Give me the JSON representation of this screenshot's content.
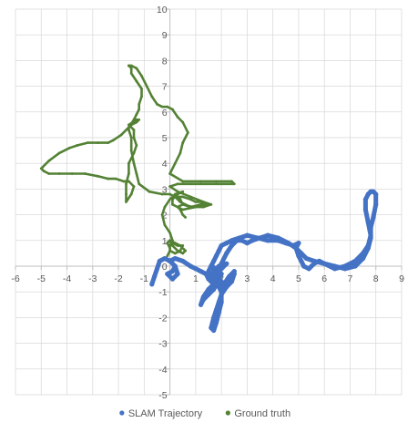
{
  "chart_data": {
    "type": "scatter",
    "title": "",
    "xlabel": "",
    "ylabel": "",
    "xlim": [
      -6,
      9
    ],
    "ylim": [
      -5,
      10
    ],
    "xticks": [
      -6,
      -5,
      -4,
      -3,
      -2,
      -1,
      0,
      1,
      2,
      3,
      4,
      5,
      6,
      7,
      8,
      9
    ],
    "yticks": [
      -5,
      -4,
      -3,
      -2,
      -1,
      0,
      1,
      2,
      3,
      4,
      5,
      6,
      7,
      8,
      9,
      10
    ],
    "grid": true,
    "legend_position": "bottom",
    "series": [
      {
        "name": "SLAM Trajectory",
        "color": "#4472C4",
        "x": [
          -0.7,
          -0.6,
          -0.5,
          -0.4,
          -0.2,
          0.0,
          0.2,
          0.1,
          -0.1,
          0.1,
          0.3,
          0.2,
          0.0,
          0.2,
          0.5,
          0.8,
          1.0,
          1.2,
          1.4,
          1.5,
          1.6,
          1.8,
          1.7,
          1.5,
          1.3,
          1.2,
          1.3,
          1.5,
          1.7,
          1.8,
          1.9,
          1.7,
          1.6,
          1.8,
          2.0,
          1.9,
          2.1,
          2.2,
          2.0,
          1.8,
          1.7,
          1.9,
          2.2,
          2.0,
          1.8,
          1.7,
          1.9,
          2.0,
          2.1,
          2.3,
          2.5,
          2.4,
          2.2,
          2.0,
          1.8,
          2.0,
          2.2,
          2.4,
          2.6,
          2.8,
          3.0,
          3.2,
          3.5,
          3.8,
          4.2,
          4.6,
          4.9,
          5.0,
          5.1,
          5.2,
          5.4,
          5.6,
          5.8,
          6.0,
          6.4,
          6.8,
          7.2,
          7.5,
          7.7,
          7.8,
          7.7,
          7.6,
          7.6,
          7.7,
          7.8,
          7.9,
          8.0,
          8.0,
          7.9,
          7.8,
          7.8,
          7.7,
          7.5,
          7.2,
          6.8,
          6.4,
          6.0,
          5.6,
          5.3,
          5.1,
          4.9,
          5.0,
          4.8,
          4.5,
          4.2,
          3.8,
          3.4,
          3.0,
          2.7,
          2.4,
          2.2,
          2.0,
          1.9,
          1.8,
          1.7,
          1.6,
          1.5,
          1.6,
          1.7,
          1.8,
          2.1,
          2.3,
          2.5,
          2.4,
          2.2,
          2.0,
          1.9,
          1.8,
          1.7,
          1.6,
          1.7,
          1.8,
          1.9,
          2.0,
          2.0,
          1.9,
          1.8,
          1.7
        ],
        "y": [
          -0.7,
          -0.4,
          -0.1,
          0.2,
          0.3,
          0.2,
          0.0,
          -0.2,
          -0.3,
          -0.5,
          -0.3,
          0.0,
          0.2,
          0.3,
          0.2,
          0.0,
          -0.1,
          -0.2,
          -0.3,
          -0.5,
          -0.6,
          -0.7,
          -0.9,
          -1.1,
          -1.3,
          -1.5,
          -1.2,
          -0.9,
          -0.7,
          -0.5,
          -0.4,
          -0.1,
          0.0,
          -0.1,
          -0.3,
          -0.5,
          -0.7,
          -0.8,
          -0.6,
          -0.4,
          -0.2,
          0.0,
          0.1,
          -0.1,
          -0.3,
          -0.6,
          -0.8,
          -1.0,
          -0.7,
          -0.4,
          -0.2,
          -0.5,
          -0.8,
          -0.6,
          -0.3,
          0.1,
          0.5,
          0.8,
          1.0,
          1.0,
          0.9,
          1.0,
          1.1,
          1.2,
          1.1,
          0.9,
          0.7,
          0.4,
          0.2,
          0.0,
          -0.1,
          0.1,
          0.2,
          0.1,
          -0.1,
          0.0,
          0.2,
          0.5,
          0.8,
          1.2,
          1.7,
          2.2,
          2.6,
          2.8,
          2.9,
          2.9,
          2.8,
          2.4,
          1.9,
          1.5,
          1.1,
          0.7,
          0.3,
          0.0,
          -0.1,
          0.0,
          0.1,
          0.2,
          0.3,
          0.5,
          0.7,
          0.9,
          0.8,
          0.9,
          1.0,
          1.0,
          1.1,
          1.2,
          1.1,
          1.0,
          0.9,
          0.8,
          0.6,
          0.4,
          0.2,
          0.0,
          -0.2,
          -0.4,
          -0.6,
          -0.7,
          -0.7,
          -0.5,
          -0.3,
          -0.6,
          -0.8,
          -1.1,
          -1.4,
          -1.7,
          -2.0,
          -2.4,
          -2.5,
          -2.2,
          -1.8,
          -1.4,
          -1.0,
          -0.6,
          -0.4,
          -0.3
        ]
      },
      {
        "name": "Ground truth",
        "color": "#548235",
        "x": [
          -0.1,
          0.0,
          0.0,
          -0.1,
          0.0,
          0.2,
          0.4,
          0.6,
          0.5,
          0.3,
          0.1,
          0.0,
          0.1,
          0.3,
          0.5,
          0.4,
          0.2,
          0.0,
          0.0,
          0.1,
          0.0,
          -0.2,
          -0.3,
          -0.2,
          0.0,
          0.2,
          0.5,
          0.3,
          0.1,
          0.1,
          0.5,
          1.0,
          1.5,
          1.2,
          0.8,
          0.4,
          0.2,
          0.0,
          -0.3,
          -0.8,
          -1.2,
          -1.3,
          -1.4,
          -1.5,
          -1.5,
          -1.6,
          -1.6,
          -1.5,
          -1.3,
          -1.2,
          -1.3,
          -1.6,
          -1.4,
          -1.4,
          -1.3,
          -1.4,
          -1.6,
          -1.6,
          -1.7,
          -1.7,
          -1.7,
          -1.5,
          -1.4,
          -1.6,
          -1.8,
          -2.1,
          -2.4,
          -2.8,
          -3.3,
          -3.8,
          -4.3,
          -4.7,
          -4.9,
          -5.0,
          -4.7,
          -4.3,
          -3.9,
          -3.6,
          -3.2,
          -2.8,
          -2.4,
          -2.2,
          -1.9,
          -1.6,
          -1.4,
          -1.3,
          -1.2,
          -1.2,
          -1.1,
          -1.1,
          -1.3,
          -1.5,
          -1.5,
          -1.6,
          -1.6,
          -1.5,
          -1.3,
          -1.1,
          -0.9,
          -0.7,
          -0.5,
          -0.3,
          -0.1,
          0.1,
          0.3,
          0.5,
          0.7,
          0.5,
          0.4,
          0.2,
          0.0,
          0.5,
          1.2,
          1.8,
          2.4,
          2.5,
          2.0,
          1.4,
          0.8,
          0.3,
          0.0,
          0.3,
          0.8,
          1.3,
          1.6,
          1.3,
          0.8,
          0.5,
          0.4,
          0.3,
          0.5,
          0.8,
          1.0,
          1.2,
          1.3,
          0.9,
          0.5,
          0.3,
          0.4,
          0.5,
          0.6
        ],
        "y": [
          0.4,
          0.6,
          0.7,
          0.9,
          1.0,
          0.9,
          0.8,
          0.6,
          0.5,
          0.6,
          0.8,
          1.0,
          0.9,
          0.8,
          0.8,
          0.6,
          0.5,
          0.6,
          0.8,
          1.0,
          1.3,
          1.6,
          2.0,
          2.3,
          2.6,
          2.8,
          2.9,
          2.8,
          2.6,
          2.4,
          2.2,
          2.3,
          2.4,
          2.4,
          2.3,
          2.5,
          2.7,
          2.8,
          2.8,
          2.9,
          3.2,
          3.6,
          4.0,
          4.5,
          5.0,
          5.3,
          5.4,
          5.5,
          5.6,
          5.7,
          5.7,
          5.5,
          5.3,
          5.0,
          4.7,
          4.4,
          4.0,
          3.6,
          3.2,
          2.8,
          2.5,
          2.8,
          3.1,
          3.3,
          3.3,
          3.4,
          3.4,
          3.5,
          3.6,
          3.6,
          3.6,
          3.6,
          3.7,
          3.8,
          4.1,
          4.4,
          4.6,
          4.7,
          4.8,
          4.8,
          4.8,
          4.9,
          5.1,
          5.4,
          5.7,
          5.9,
          6.1,
          6.3,
          6.6,
          6.9,
          7.2,
          7.5,
          7.7,
          7.8,
          7.8,
          7.8,
          7.7,
          7.4,
          7.0,
          6.6,
          6.3,
          6.2,
          6.2,
          6.1,
          5.8,
          5.6,
          5.2,
          4.8,
          4.4,
          4.0,
          3.6,
          3.3,
          3.3,
          3.3,
          3.3,
          3.2,
          3.2,
          3.2,
          3.2,
          3.2,
          3.1,
          2.9,
          2.7,
          2.5,
          2.4,
          2.3,
          2.3,
          2.4,
          2.6,
          2.7,
          2.7,
          2.6,
          2.5,
          2.5,
          2.4,
          2.3,
          2.4,
          2.3,
          2.2,
          2.0,
          1.9
        ]
      }
    ]
  }
}
